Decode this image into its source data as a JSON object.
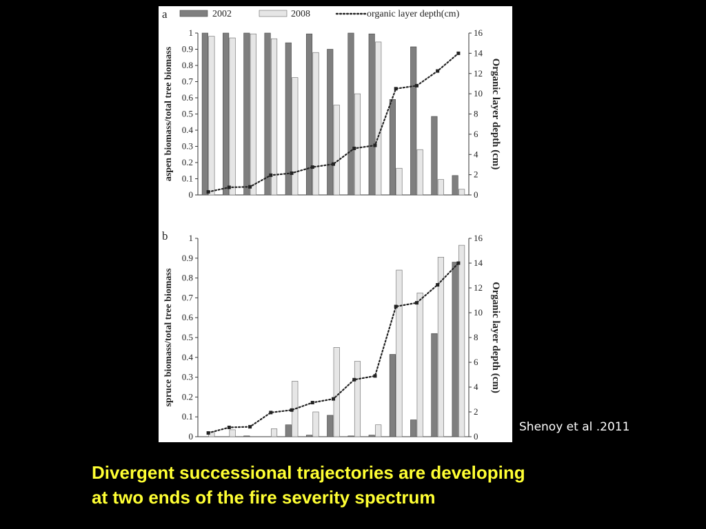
{
  "citation": "Shenoy et al .2011",
  "caption": {
    "line1": "Divergent successional trajectories are developing",
    "line2": "at two ends of the fire severity spectrum"
  },
  "colors": {
    "bar_2002": "#7f7f7f",
    "bar_2008": "#e6e6e6",
    "depth_line": "#222222",
    "caption_text": "#ffff33",
    "citation_text": "#ffffff",
    "background": "#000000"
  },
  "chart_data": [
    {
      "panel_label": "a",
      "type": "bar",
      "ylabel": "aspen biomass/total tree biomass",
      "y2label": "Organic layer depth (cm)",
      "ylim": [
        0,
        1
      ],
      "y2lim": [
        0,
        16
      ],
      "yticks": [
        "0",
        "0.1",
        "0.2",
        "0.3",
        "0.4",
        "0.5",
        "0.6",
        "0.7",
        "0.8",
        "0.9",
        "1"
      ],
      "y2ticks": [
        "0",
        "2",
        "4",
        "6",
        "8",
        "10",
        "12",
        "14",
        "16"
      ],
      "legend": {
        "placement": "top",
        "entries": [
          "2002",
          "2008",
          "organic layer depth(cm)"
        ]
      },
      "series": [
        {
          "name": "2002",
          "values": [
            1.0,
            1.0,
            1.0,
            1.0,
            0.94,
            0.995,
            0.9,
            1.0,
            0.995,
            0.59,
            0.915,
            0.485,
            0.12
          ]
        },
        {
          "name": "2008",
          "values": [
            0.98,
            0.97,
            0.995,
            0.965,
            0.725,
            0.88,
            0.555,
            0.625,
            0.945,
            0.165,
            0.28,
            0.095,
            0.035
          ]
        }
      ],
      "depth_cm": [
        0.3,
        0.75,
        0.8,
        1.95,
        2.15,
        2.75,
        3.05,
        4.6,
        4.9,
        10.5,
        10.8,
        12.25,
        14.0
      ]
    },
    {
      "panel_label": "b",
      "type": "bar",
      "ylabel": "spruce biomass/total tree biomass",
      "y2label": "Organic layer depth (cm)",
      "ylim": [
        0,
        1
      ],
      "y2lim": [
        0,
        16
      ],
      "yticks": [
        "0",
        "0.1",
        "0.2",
        "0.3",
        "0.4",
        "0.5",
        "0.6",
        "0.7",
        "0.8",
        "0.9",
        "1"
      ],
      "y2ticks": [
        "0",
        "2",
        "4",
        "6",
        "8",
        "10",
        "12",
        "14",
        "16"
      ],
      "series": [
        {
          "name": "2002",
          "values": [
            0.0,
            0.0,
            0.004,
            0.0,
            0.06,
            0.008,
            0.108,
            0.004,
            0.008,
            0.415,
            0.085,
            0.52,
            0.88
          ]
        },
        {
          "name": "2008",
          "values": [
            0.025,
            0.035,
            0.0,
            0.04,
            0.28,
            0.125,
            0.45,
            0.38,
            0.06,
            0.84,
            0.725,
            0.905,
            0.965
          ]
        }
      ],
      "depth_cm": [
        0.3,
        0.75,
        0.8,
        1.95,
        2.15,
        2.75,
        3.05,
        4.6,
        4.9,
        10.5,
        10.8,
        12.25,
        14.0
      ]
    }
  ]
}
